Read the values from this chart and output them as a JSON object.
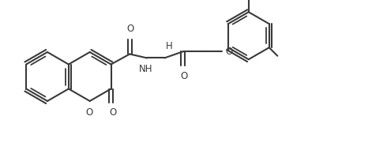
{
  "bg_color": "#ffffff",
  "bond_color": "#3a3a3a",
  "bond_width": 1.5,
  "font_size": 8.5,
  "figsize": [
    4.9,
    1.9
  ],
  "dpi": 100,
  "xlim": [
    0,
    490
  ],
  "ylim": [
    0,
    190
  ]
}
